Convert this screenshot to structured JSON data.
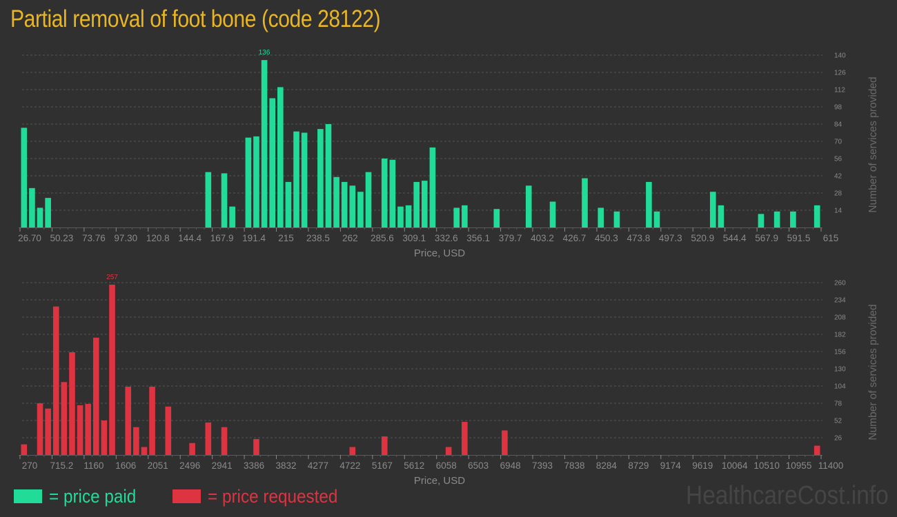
{
  "page": {
    "title": "Partial removal of foot bone (code 28122)",
    "watermark": "HealthcareCost.info"
  },
  "colors": {
    "background": "#303030",
    "title": "#e8b625",
    "paid": "#21dc98",
    "requested": "#de3341",
    "grid": "#555555",
    "axis_text": "#8a8a8a",
    "watermark": "#454545"
  },
  "legend": {
    "paid_label": "= price paid",
    "requested_label": "= price requested"
  },
  "chart_data": [
    {
      "type": "bar",
      "id": "price-paid",
      "title": "Price paid",
      "xlabel": "Price, USD",
      "ylabel": "Number of services provided",
      "color": "#21dc98",
      "x_range": [
        26.7,
        615
      ],
      "bins": 100,
      "ylim": [
        0,
        140
      ],
      "y_ticks": [
        14,
        28,
        42,
        56,
        70,
        84,
        98,
        112,
        126,
        140
      ],
      "x_tick_labels": [
        "26.70",
        "50.23",
        "73.76",
        "97.30",
        "120.8",
        "144.4",
        "167.9",
        "191.4",
        "215",
        "238.5",
        "262",
        "285.6",
        "309.1",
        "332.6",
        "356.1",
        "379.7",
        "403.2",
        "426.7",
        "450.3",
        "473.8",
        "497.3",
        "520.9",
        "544.4",
        "567.9",
        "591.5",
        "615"
      ],
      "peak_label": "136",
      "grid": true,
      "bars": [
        {
          "bin": 0,
          "value": 81
        },
        {
          "bin": 1,
          "value": 32
        },
        {
          "bin": 2,
          "value": 16
        },
        {
          "bin": 3,
          "value": 24
        },
        {
          "bin": 23,
          "value": 45
        },
        {
          "bin": 25,
          "value": 44
        },
        {
          "bin": 26,
          "value": 17
        },
        {
          "bin": 28,
          "value": 73
        },
        {
          "bin": 29,
          "value": 74
        },
        {
          "bin": 30,
          "value": 136
        },
        {
          "bin": 31,
          "value": 105
        },
        {
          "bin": 32,
          "value": 114
        },
        {
          "bin": 33,
          "value": 37
        },
        {
          "bin": 34,
          "value": 78
        },
        {
          "bin": 35,
          "value": 77
        },
        {
          "bin": 37,
          "value": 80
        },
        {
          "bin": 38,
          "value": 84
        },
        {
          "bin": 39,
          "value": 41
        },
        {
          "bin": 40,
          "value": 37
        },
        {
          "bin": 41,
          "value": 34
        },
        {
          "bin": 42,
          "value": 29
        },
        {
          "bin": 43,
          "value": 45
        },
        {
          "bin": 45,
          "value": 56
        },
        {
          "bin": 46,
          "value": 55
        },
        {
          "bin": 47,
          "value": 17
        },
        {
          "bin": 48,
          "value": 18
        },
        {
          "bin": 49,
          "value": 37
        },
        {
          "bin": 50,
          "value": 38
        },
        {
          "bin": 51,
          "value": 65
        },
        {
          "bin": 54,
          "value": 16
        },
        {
          "bin": 55,
          "value": 18
        },
        {
          "bin": 59,
          "value": 15
        },
        {
          "bin": 63,
          "value": 34
        },
        {
          "bin": 66,
          "value": 21
        },
        {
          "bin": 70,
          "value": 40
        },
        {
          "bin": 72,
          "value": 16
        },
        {
          "bin": 74,
          "value": 13
        },
        {
          "bin": 78,
          "value": 37
        },
        {
          "bin": 79,
          "value": 13
        },
        {
          "bin": 86,
          "value": 29
        },
        {
          "bin": 87,
          "value": 18
        },
        {
          "bin": 92,
          "value": 11
        },
        {
          "bin": 94,
          "value": 13
        },
        {
          "bin": 96,
          "value": 13
        },
        {
          "bin": 99,
          "value": 18
        }
      ]
    },
    {
      "type": "bar",
      "id": "price-requested",
      "title": "Price requested",
      "xlabel": "Price, USD",
      "ylabel": "Number of services provided",
      "color": "#de3341",
      "x_range": [
        270,
        11400
      ],
      "bins": 100,
      "ylim": [
        0,
        260
      ],
      "y_ticks": [
        26,
        52,
        78,
        104,
        130,
        156,
        182,
        208,
        234,
        260
      ],
      "x_tick_labels": [
        "270",
        "715.2",
        "1160",
        "1606",
        "2051",
        "2496",
        "2941",
        "3386",
        "3832",
        "4277",
        "4722",
        "5167",
        "5612",
        "6058",
        "6503",
        "6948",
        "7393",
        "7838",
        "8284",
        "8729",
        "9174",
        "9619",
        "10064",
        "10510",
        "10955",
        "11400"
      ],
      "peak_label": "257",
      "grid": true,
      "bars": [
        {
          "bin": 0,
          "value": 16
        },
        {
          "bin": 2,
          "value": 78
        },
        {
          "bin": 3,
          "value": 70
        },
        {
          "bin": 4,
          "value": 224
        },
        {
          "bin": 5,
          "value": 110
        },
        {
          "bin": 6,
          "value": 155
        },
        {
          "bin": 7,
          "value": 75
        },
        {
          "bin": 8,
          "value": 77
        },
        {
          "bin": 9,
          "value": 177
        },
        {
          "bin": 10,
          "value": 52
        },
        {
          "bin": 11,
          "value": 257
        },
        {
          "bin": 13,
          "value": 103
        },
        {
          "bin": 14,
          "value": 42
        },
        {
          "bin": 15,
          "value": 12
        },
        {
          "bin": 16,
          "value": 103
        },
        {
          "bin": 18,
          "value": 73
        },
        {
          "bin": 21,
          "value": 18
        },
        {
          "bin": 23,
          "value": 49
        },
        {
          "bin": 25,
          "value": 42
        },
        {
          "bin": 29,
          "value": 24
        },
        {
          "bin": 41,
          "value": 12
        },
        {
          "bin": 45,
          "value": 28
        },
        {
          "bin": 53,
          "value": 12
        },
        {
          "bin": 55,
          "value": 50
        },
        {
          "bin": 60,
          "value": 37
        },
        {
          "bin": 99,
          "value": 14
        }
      ]
    }
  ]
}
